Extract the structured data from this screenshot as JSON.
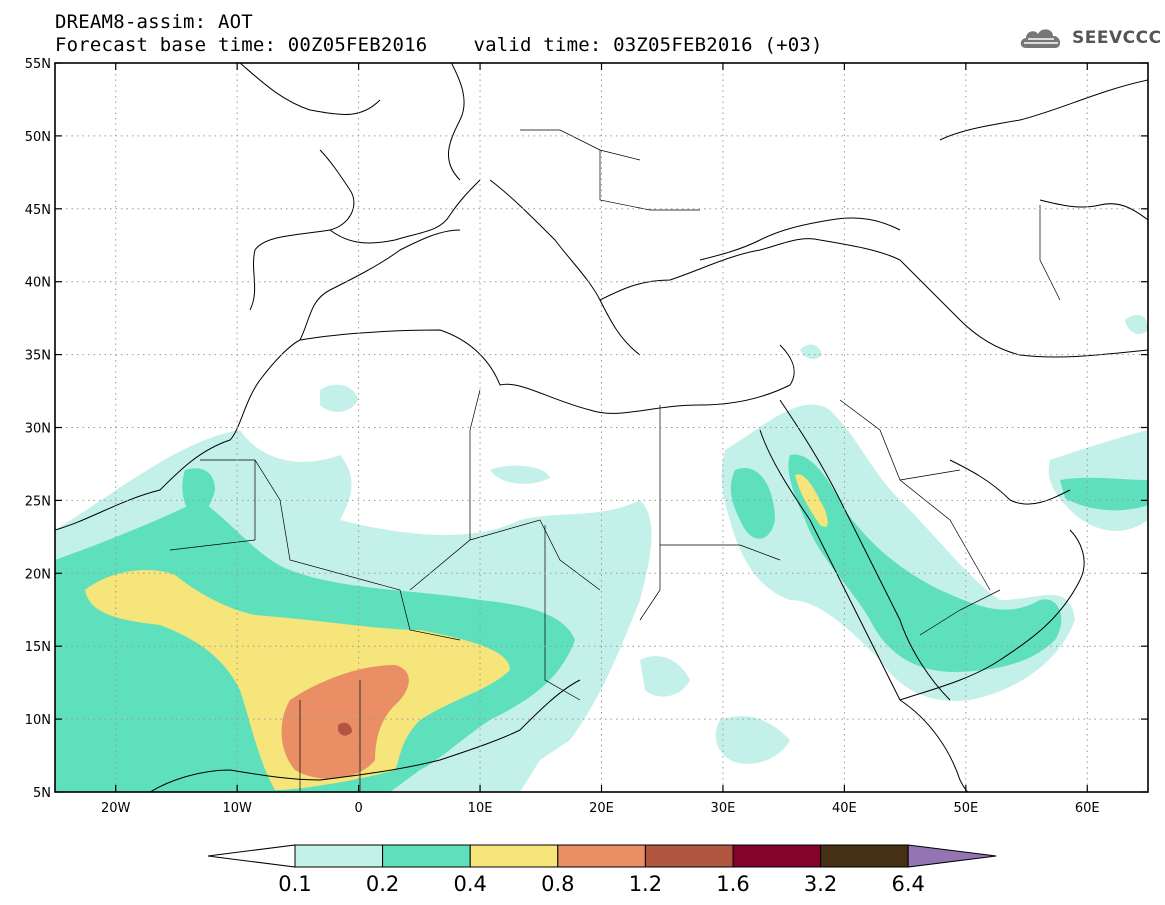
{
  "header": {
    "line1": "DREAM8-assim: AOT",
    "base_time": "Forecast base time: 00Z05FEB2016",
    "valid_time": "valid time: 03Z05FEB2016 (+03)"
  },
  "logo": {
    "text": "SEEVCCC",
    "icon": "cloud-icon"
  },
  "map": {
    "lat_labels": [
      "55N",
      "50N",
      "45N",
      "40N",
      "35N",
      "30N",
      "25N",
      "20N",
      "15N",
      "10N",
      "5N"
    ],
    "lon_labels": [
      "20W",
      "10W",
      "0",
      "10E",
      "20E",
      "30E",
      "40E",
      "50E",
      "60E"
    ],
    "extent": {
      "lon": [
        -25,
        65
      ],
      "lat": [
        5,
        55
      ]
    },
    "grid": "dotted"
  },
  "colorbar": {
    "ticks": [
      "0.1",
      "0.2",
      "0.4",
      "0.8",
      "1.2",
      "1.6",
      "3.2",
      "6.4"
    ],
    "colors": [
      "#c4f0ea",
      "#5fe0bd",
      "#f6e57a",
      "#ea8e66",
      "#b15440",
      "#84032a",
      "#453015",
      "#9375b4"
    ],
    "under_color": "#ffffff"
  }
}
